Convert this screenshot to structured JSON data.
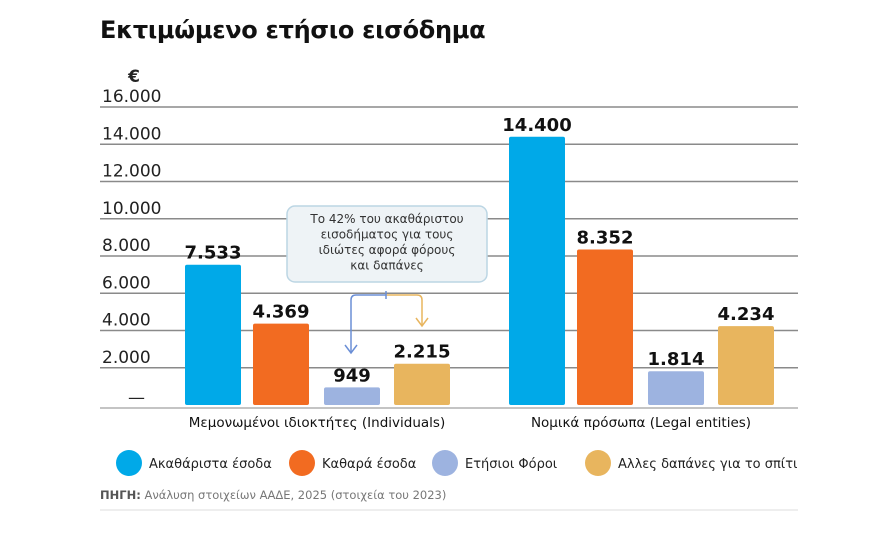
{
  "chart_data": {
    "type": "bar",
    "title": "Εκτιμώμενο ετήσιο εισόδημα",
    "ylabel": "€",
    "ylim": [
      0,
      16000
    ],
    "yticks": [
      "—",
      "2.000",
      "4.000",
      "6.000",
      "8.000",
      "10.000",
      "12.000",
      "14.000",
      "16.000"
    ],
    "ytick_values": [
      0,
      2000,
      4000,
      6000,
      8000,
      10000,
      12000,
      14000,
      16000
    ],
    "grid": true,
    "legend_placement": "bottom",
    "categories": [
      "Μεμονωμένοι ιδιοκτήτες (Individuals)",
      "Νομικά πρόσωπα (Legal entities)"
    ],
    "series": [
      {
        "name": "Ακαθάριστα έσοδα",
        "color": "#00a9e8",
        "values": [
          7533,
          14400
        ],
        "labels": [
          "7.533",
          "14.400"
        ]
      },
      {
        "name": "Καθαρά έσοδα",
        "color": "#f26b21",
        "values": [
          4369,
          8352
        ],
        "labels": [
          "4.369",
          "8.352"
        ]
      },
      {
        "name": "Ετήσιοι Φόροι",
        "color": "#9db3e0",
        "values": [
          949,
          1814
        ],
        "labels": [
          "949",
          "1.814"
        ]
      },
      {
        "name": "Αλλες δαπάνες για το σπίτι",
        "color": "#e8b55e",
        "values": [
          2215,
          4234
        ],
        "labels": [
          "2.215",
          "4.234"
        ]
      }
    ],
    "annotation": [
      "Το 42% του ακαθάριστου",
      "εισοδήματος για τους",
      "ιδιώτες αφορά φόρους",
      "και δαπάνες"
    ],
    "source_label": "ΠΗΓΗ:",
    "source_text": " Ανάλυση στοιχείων ΑΑΔΕ, 2025 (στοιχεία του 2023)"
  }
}
